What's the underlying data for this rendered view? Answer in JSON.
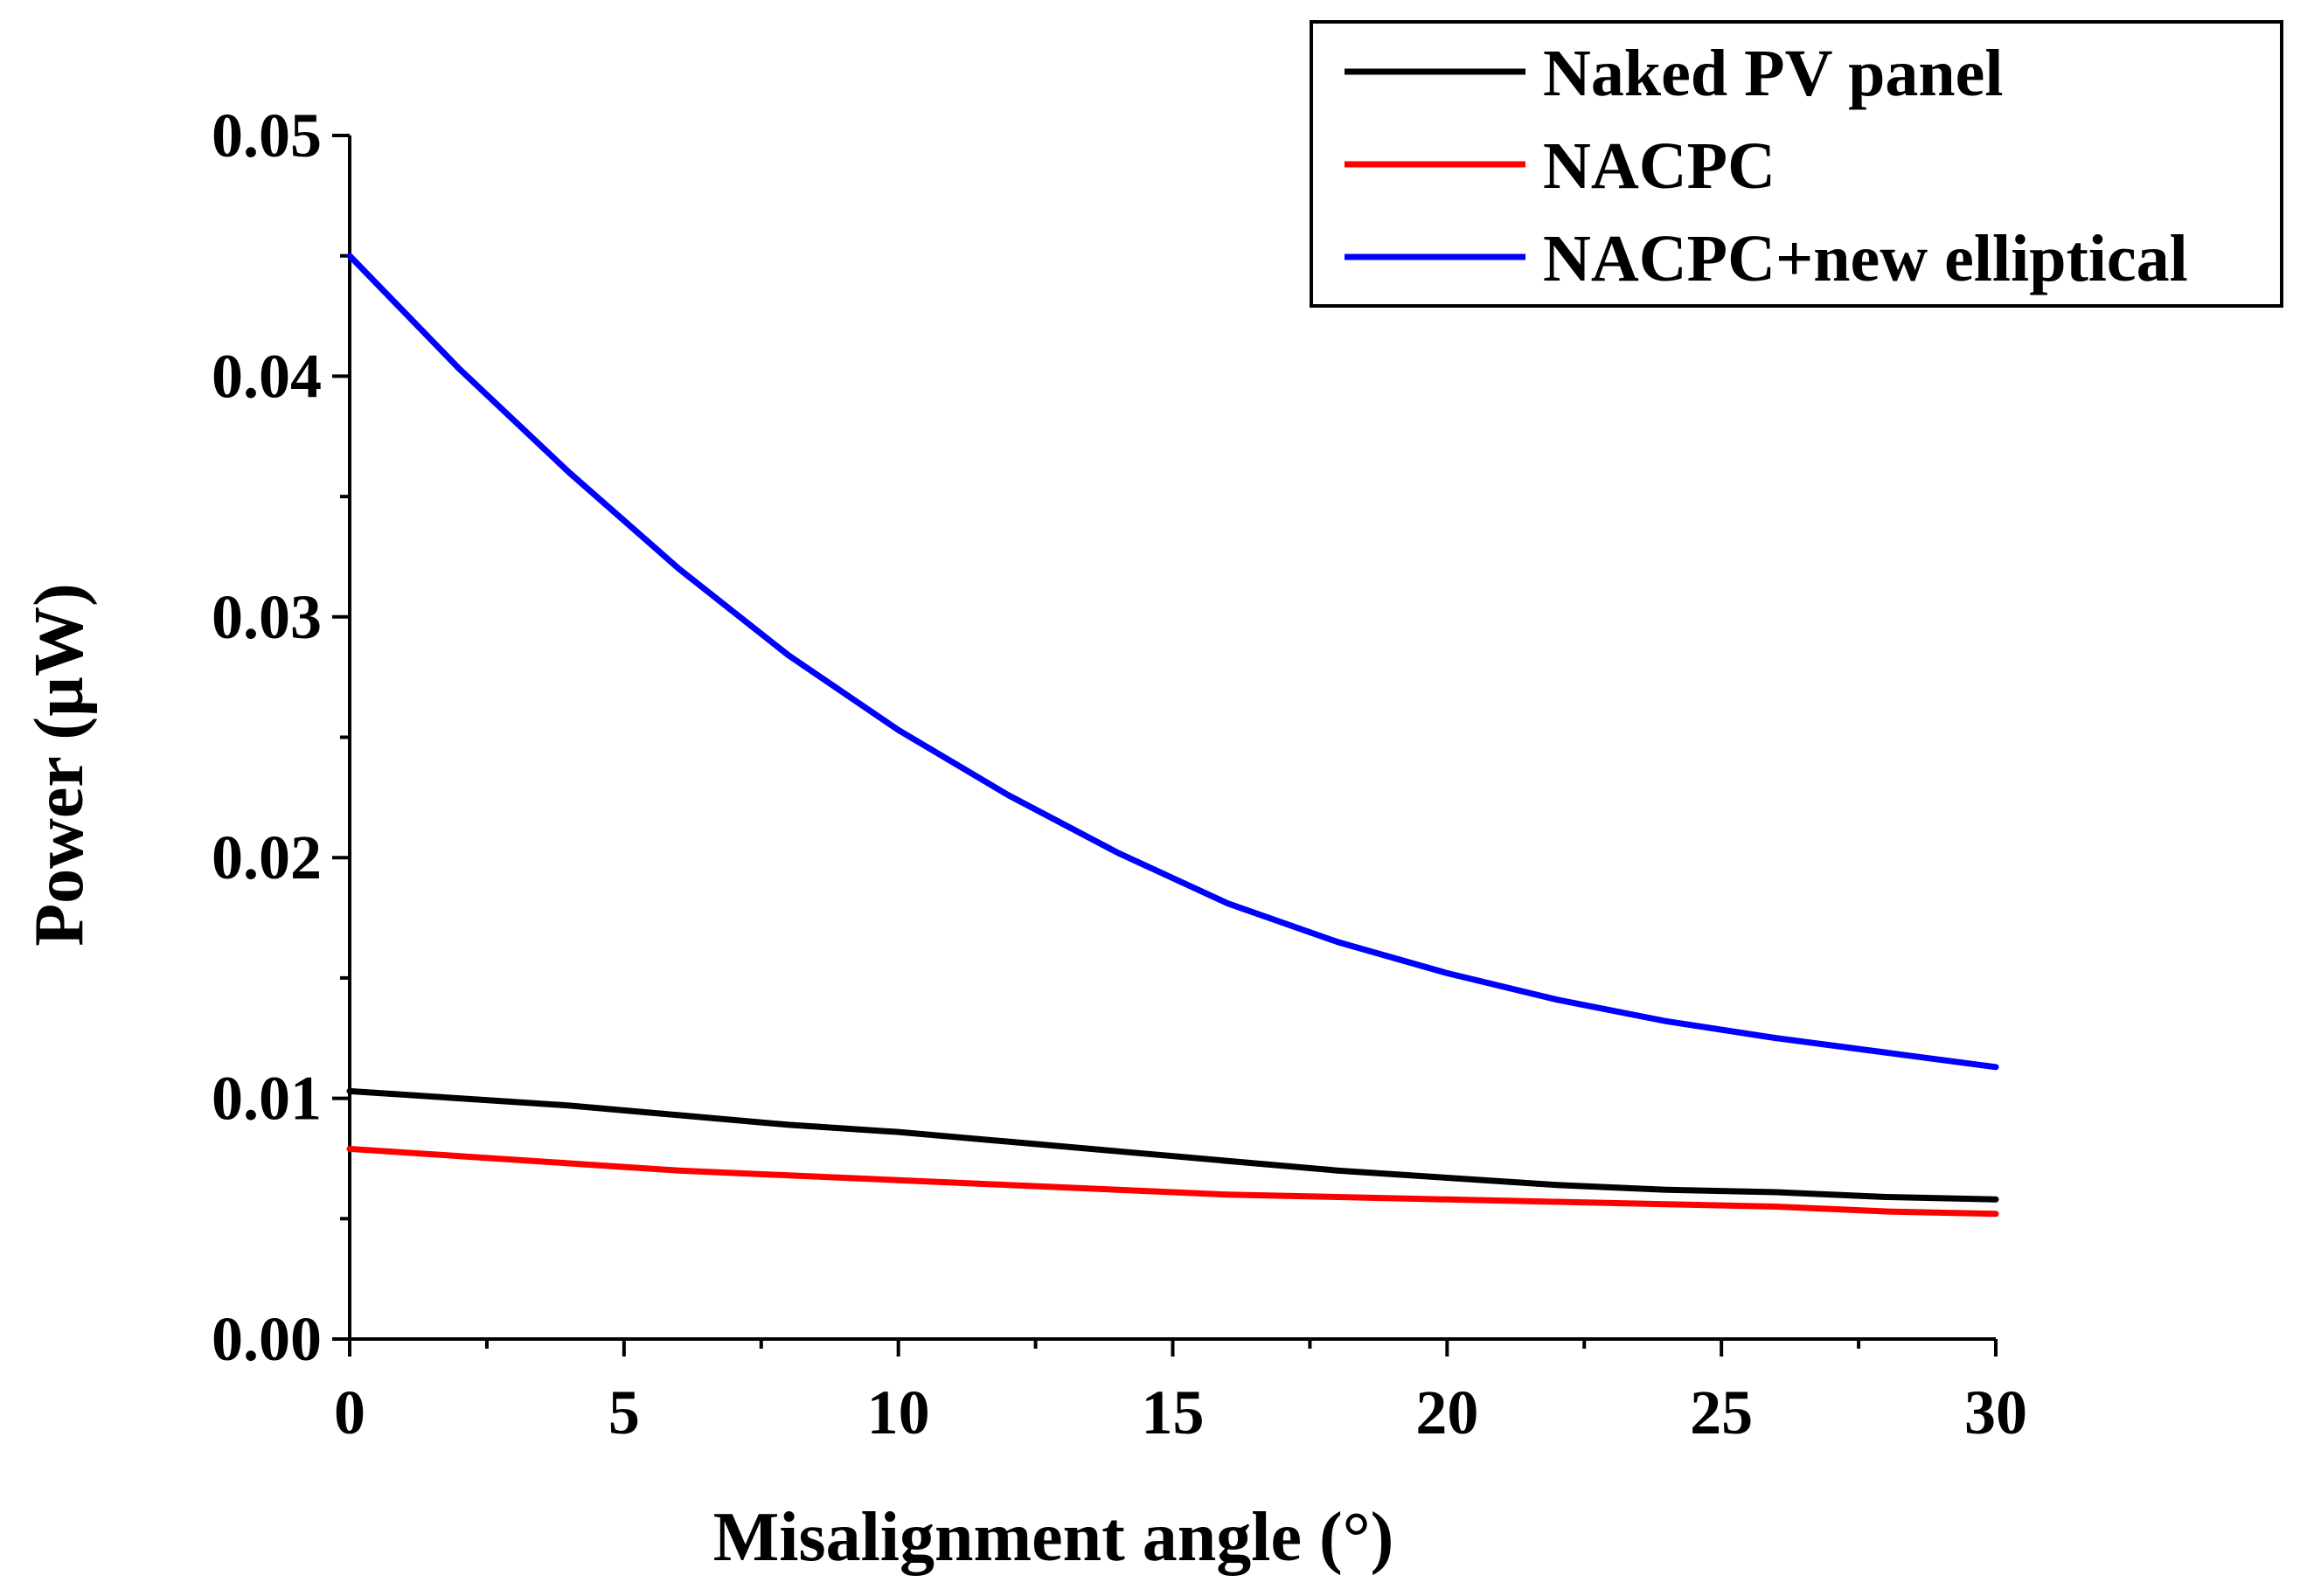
{
  "chart_data": {
    "type": "line",
    "title": "",
    "xlabel": "Misalignment angle (°)",
    "ylabel": "Power (µW)",
    "xlim": [
      0,
      30
    ],
    "ylim": [
      0,
      0.05
    ],
    "grid": false,
    "legend_position": "top-right",
    "xticks": [
      {
        "value": 0,
        "label": "0"
      },
      {
        "value": 5,
        "label": "5"
      },
      {
        "value": 10,
        "label": "10"
      },
      {
        "value": 15,
        "label": "15"
      },
      {
        "value": 20,
        "label": "20"
      },
      {
        "value": 25,
        "label": "25"
      },
      {
        "value": 30,
        "label": "30"
      }
    ],
    "yticks": [
      {
        "value": 0.0,
        "label": "0.00"
      },
      {
        "value": 0.01,
        "label": "0.01"
      },
      {
        "value": 0.02,
        "label": "0.02"
      },
      {
        "value": 0.03,
        "label": "0.03"
      },
      {
        "value": 0.04,
        "label": "0.04"
      },
      {
        "value": 0.05,
        "label": "0.05"
      }
    ],
    "x": [
      0,
      2,
      4,
      6,
      8,
      10,
      12,
      14,
      16,
      18,
      20,
      22,
      24,
      26,
      28,
      30
    ],
    "series": [
      {
        "name": "Naked PV panel",
        "color": "#000000",
        "values": [
          0.0103,
          0.01,
          0.0097,
          0.0093,
          0.0089,
          0.0086,
          0.0082,
          0.0078,
          0.0074,
          0.007,
          0.0067,
          0.0064,
          0.0062,
          0.0061,
          0.0059,
          0.0058
        ]
      },
      {
        "name": "NACPC",
        "color": "#ff0000",
        "values": [
          0.0079,
          0.0076,
          0.0073,
          0.007,
          0.0068,
          0.0066,
          0.0064,
          0.0062,
          0.006,
          0.0059,
          0.0058,
          0.0057,
          0.0056,
          0.0055,
          0.0053,
          0.0052
        ]
      },
      {
        "name": "NACPC+new elliptical",
        "color": "#0000ff",
        "values": [
          0.045,
          0.0403,
          0.036,
          0.032,
          0.0284,
          0.0253,
          0.0226,
          0.0202,
          0.0181,
          0.0165,
          0.0152,
          0.0141,
          0.0132,
          0.0125,
          0.0119,
          0.0113
        ]
      }
    ]
  }
}
